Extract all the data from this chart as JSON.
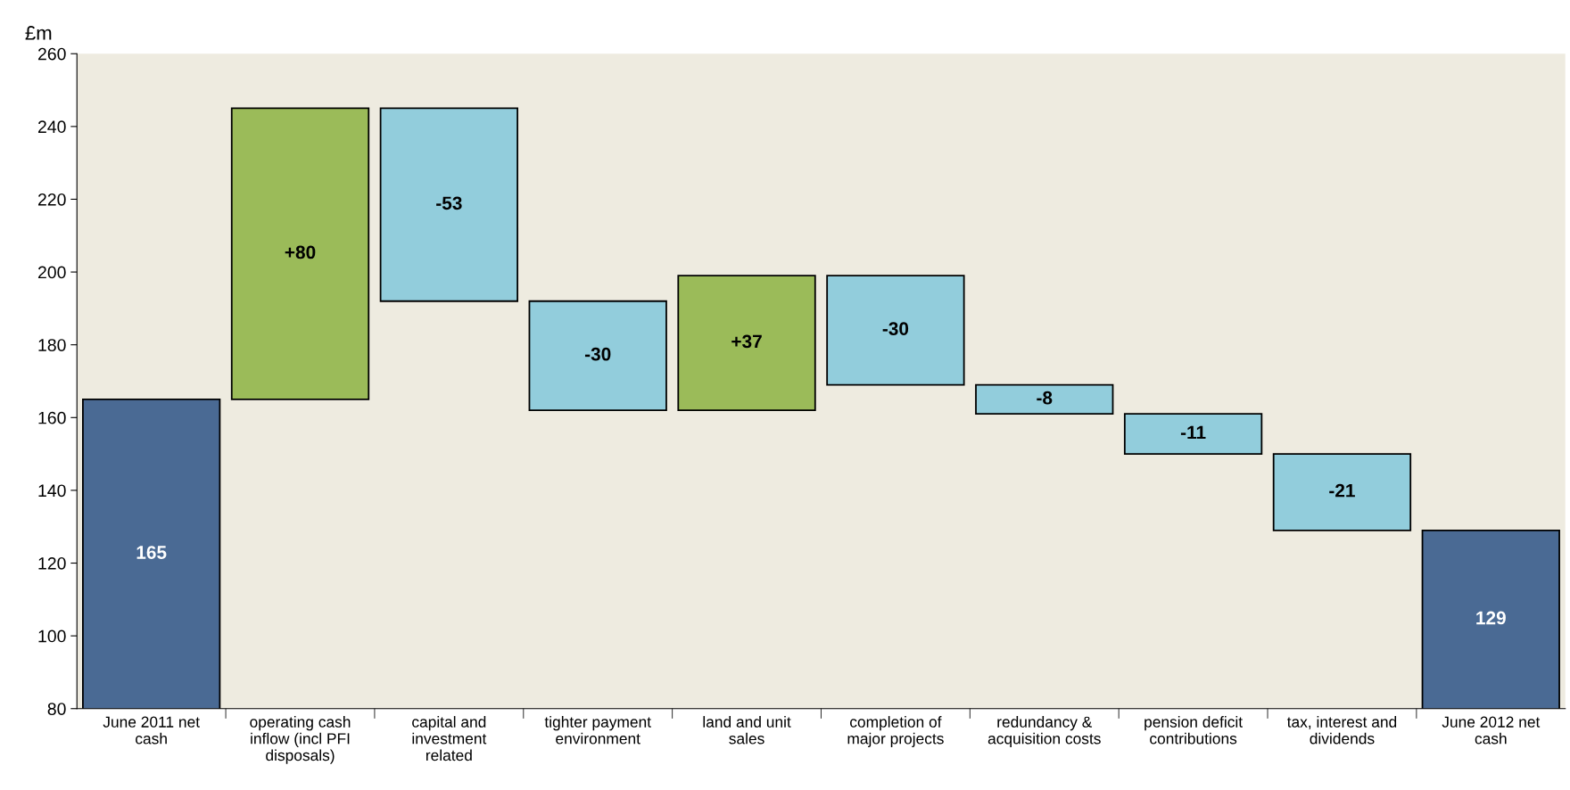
{
  "chart_data": {
    "type": "bar",
    "ylabel": "£m",
    "categories": [
      "June 2011 net\ncash",
      "operating cash\ninflow (incl PFI\ndisposals)",
      "capital and\ninvestment\nrelated",
      "tighter payment\nenvironment",
      "land and unit\nsales",
      "completion of\nmajor projects",
      "redundancy &\nacquisition costs",
      "pension deficit\ncontributions",
      "tax, interest and\ndividends",
      "June 2012 net\ncash"
    ],
    "values": [
      165,
      80,
      -53,
      -30,
      37,
      -30,
      -8,
      -11,
      -21,
      129
    ],
    "base": [
      0,
      165,
      245,
      192,
      162,
      199,
      169,
      161,
      150,
      0
    ],
    "colors": [
      "#4a6a94",
      "#9bbb59",
      "#92cddc",
      "#92cddc",
      "#9bbb59",
      "#92cddc",
      "#92cddc",
      "#92cddc",
      "#92cddc",
      "#4a6a94"
    ],
    "value_labels": [
      "165",
      "+80",
      "-53",
      "-30",
      "+37",
      "-30",
      "-8",
      "-11",
      "-21",
      "129"
    ],
    "ylim": [
      80,
      260
    ],
    "yticks": [
      80,
      100,
      120,
      140,
      160,
      180,
      200,
      220,
      240,
      260
    ],
    "grid": false
  }
}
